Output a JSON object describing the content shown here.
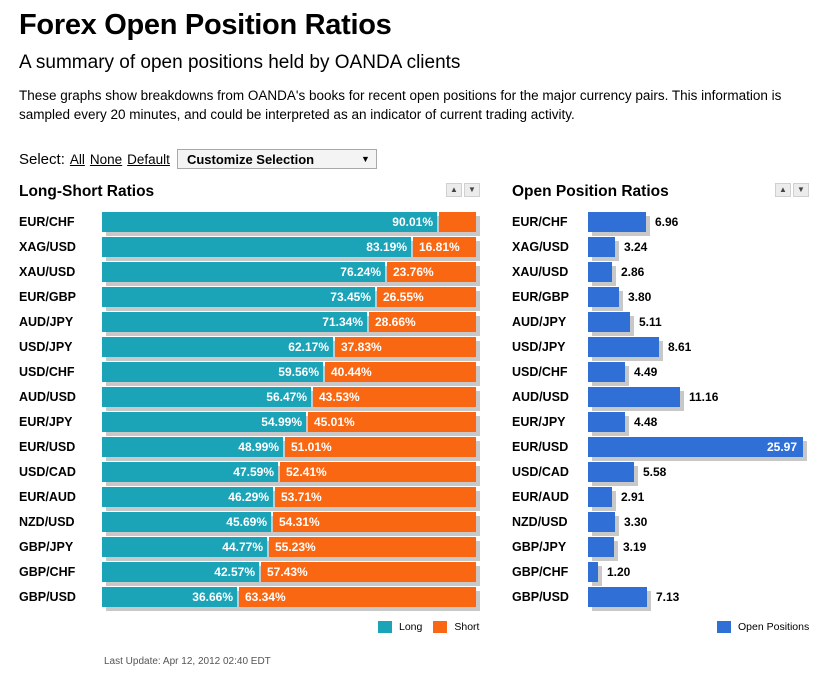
{
  "page": {
    "title": "Forex Open Position Ratios",
    "subtitle": "A summary of open positions held by OANDA clients",
    "description": "These graphs show breakdowns from OANDA's books for recent open positions for the major currency pairs. This information is sampled every 20 minutes, and could be interpreted as an indicator of current trading activity.",
    "select_label": "Select:",
    "links": {
      "all": "All",
      "none": "None",
      "default": "Default"
    },
    "dropdown_value": "Customize Selection",
    "last_update": "Last Update: Apr 12, 2012 02:40 EDT"
  },
  "colors": {
    "long": "#1ba3b8",
    "short": "#fa6713",
    "open_positions": "#2f6fd6",
    "shadow": "#c8c8c8"
  },
  "chart_data": [
    {
      "type": "bar",
      "orientation": "horizontal",
      "stacked": true,
      "title": "Long-Short Ratios",
      "categories": [
        "EUR/CHF",
        "XAG/USD",
        "XAU/USD",
        "EUR/GBP",
        "AUD/JPY",
        "USD/JPY",
        "USD/CHF",
        "AUD/USD",
        "EUR/JPY",
        "EUR/USD",
        "USD/CAD",
        "EUR/AUD",
        "NZD/USD",
        "GBP/JPY",
        "GBP/CHF",
        "GBP/USD"
      ],
      "series": [
        {
          "name": "Long",
          "values": [
            90.01,
            83.19,
            76.24,
            73.45,
            71.34,
            62.17,
            59.56,
            56.47,
            54.99,
            48.99,
            47.59,
            46.29,
            45.69,
            44.77,
            42.57,
            36.66
          ]
        },
        {
          "name": "Short",
          "values": [
            9.99,
            16.81,
            23.76,
            26.55,
            28.66,
            37.83,
            40.44,
            43.53,
            45.01,
            51.01,
            52.41,
            53.71,
            54.31,
            55.23,
            57.43,
            63.34
          ]
        }
      ],
      "labels": {
        "Long": [
          "90.01%",
          "83.19%",
          "76.24%",
          "73.45%",
          "71.34%",
          "62.17%",
          "59.56%",
          "56.47%",
          "54.99%",
          "48.99%",
          "47.59%",
          "46.29%",
          "45.69%",
          "44.77%",
          "42.57%",
          "36.66%"
        ],
        "Short": [
          "",
          "16.81%",
          "23.76%",
          "26.55%",
          "28.66%",
          "37.83%",
          "40.44%",
          "43.53%",
          "45.01%",
          "51.01%",
          "52.41%",
          "53.71%",
          "54.31%",
          "55.23%",
          "57.43%",
          "63.34%"
        ]
      },
      "xlim": [
        0,
        100
      ],
      "legend": "bottom-right"
    },
    {
      "type": "bar",
      "orientation": "horizontal",
      "title": "Open Position Ratios",
      "categories": [
        "EUR/CHF",
        "XAG/USD",
        "XAU/USD",
        "EUR/GBP",
        "AUD/JPY",
        "USD/JPY",
        "USD/CHF",
        "AUD/USD",
        "EUR/JPY",
        "EUR/USD",
        "USD/CAD",
        "EUR/AUD",
        "NZD/USD",
        "GBP/JPY",
        "GBP/CHF",
        "GBP/USD"
      ],
      "series": [
        {
          "name": "Open Positions",
          "values": [
            6.96,
            3.24,
            2.86,
            3.8,
            5.11,
            8.61,
            4.49,
            11.16,
            4.48,
            25.97,
            5.58,
            2.91,
            3.3,
            3.19,
            1.2,
            7.13
          ]
        }
      ],
      "labels": [
        "6.96",
        "3.24",
        "2.86",
        "3.80",
        "5.11",
        "8.61",
        "4.49",
        "11.16",
        "4.48",
        "25.97",
        "5.58",
        "2.91",
        "3.30",
        "3.19",
        "1.20",
        "7.13"
      ],
      "xlim": [
        0,
        25.97
      ],
      "legend": "bottom-right"
    }
  ]
}
